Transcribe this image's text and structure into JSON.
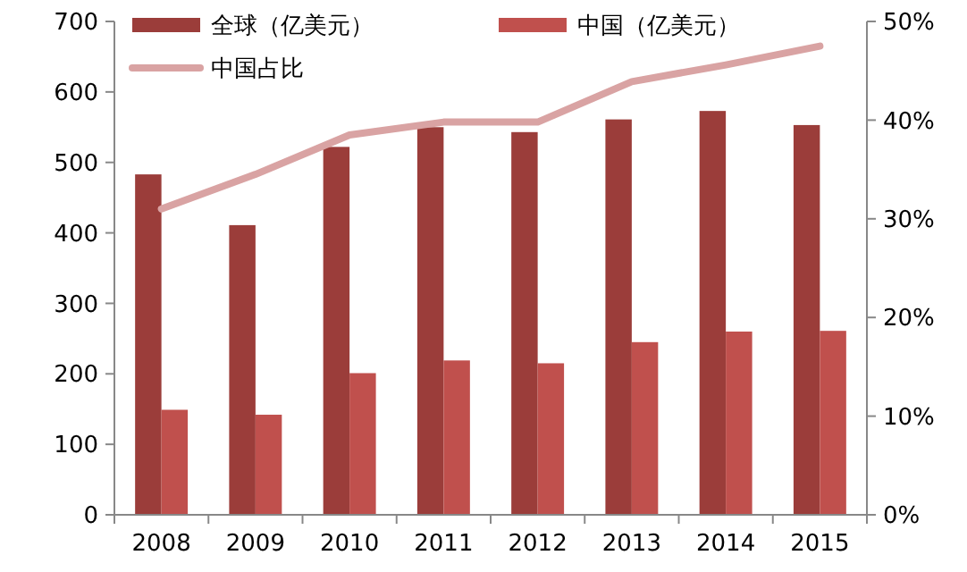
{
  "chart_data": {
    "type": "bar",
    "categories": [
      "2008",
      "2009",
      "2010",
      "2011",
      "2012",
      "2013",
      "2014",
      "2015"
    ],
    "series": [
      {
        "name": "全球（亿美元）",
        "color": "#9b3d3a",
        "values": [
          483,
          411,
          522,
          550,
          543,
          561,
          573,
          553
        ]
      },
      {
        "name": "中国（亿美元）",
        "color": "#c0504d",
        "values": [
          149,
          142,
          201,
          219,
          215,
          245,
          260,
          261
        ]
      },
      {
        "name": "中国占比",
        "type": "line",
        "axis": "y2",
        "color": "#d9a3a3",
        "values": [
          31,
          34.5,
          38.5,
          39.8,
          39.8,
          43.9,
          45.6,
          47.5
        ]
      }
    ],
    "ylim": [
      0,
      700
    ],
    "yticks": [
      0,
      100,
      200,
      300,
      400,
      500,
      600,
      700
    ],
    "y2lim": [
      0,
      50
    ],
    "y2ticks": [
      {
        "value": 0,
        "label": "0%"
      },
      {
        "value": 10,
        "label": "10%"
      },
      {
        "value": 20,
        "label": "20%"
      },
      {
        "value": 30,
        "label": "30%"
      },
      {
        "value": 40,
        "label": "40%"
      },
      {
        "value": 50,
        "label": "50%"
      }
    ],
    "grid": false,
    "legend": "top",
    "marker": "none",
    "line_style": "solid"
  }
}
